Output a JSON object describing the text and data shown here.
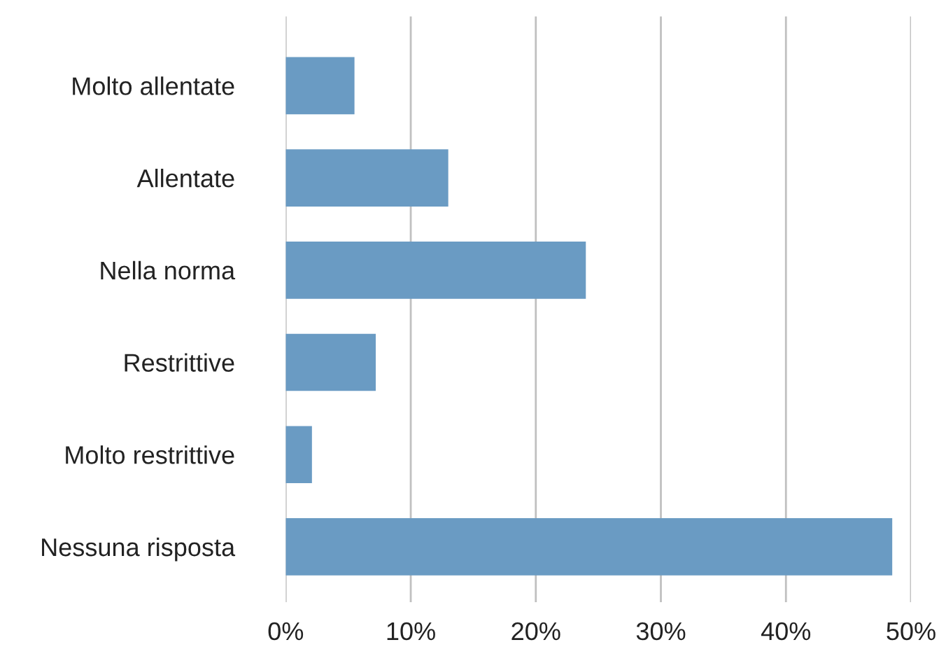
{
  "chart_data": {
    "type": "bar",
    "orientation": "horizontal",
    "categories": [
      "Molto allentate",
      "Allentate",
      "Nella norma",
      "Restrittive",
      "Molto restrittive",
      "Nessuna risposta"
    ],
    "values": [
      5.5,
      13.0,
      24.0,
      7.2,
      2.1,
      48.5
    ],
    "color": "#6a9bc3",
    "xlim": [
      0,
      50
    ],
    "xticks": [
      {
        "value": 0,
        "label": "0%"
      },
      {
        "value": 10,
        "label": "10%"
      },
      {
        "value": 20,
        "label": "20%"
      },
      {
        "value": 30,
        "label": "30%"
      },
      {
        "value": 40,
        "label": "40%"
      },
      {
        "value": 50,
        "label": "50%"
      }
    ],
    "grid": "x"
  }
}
